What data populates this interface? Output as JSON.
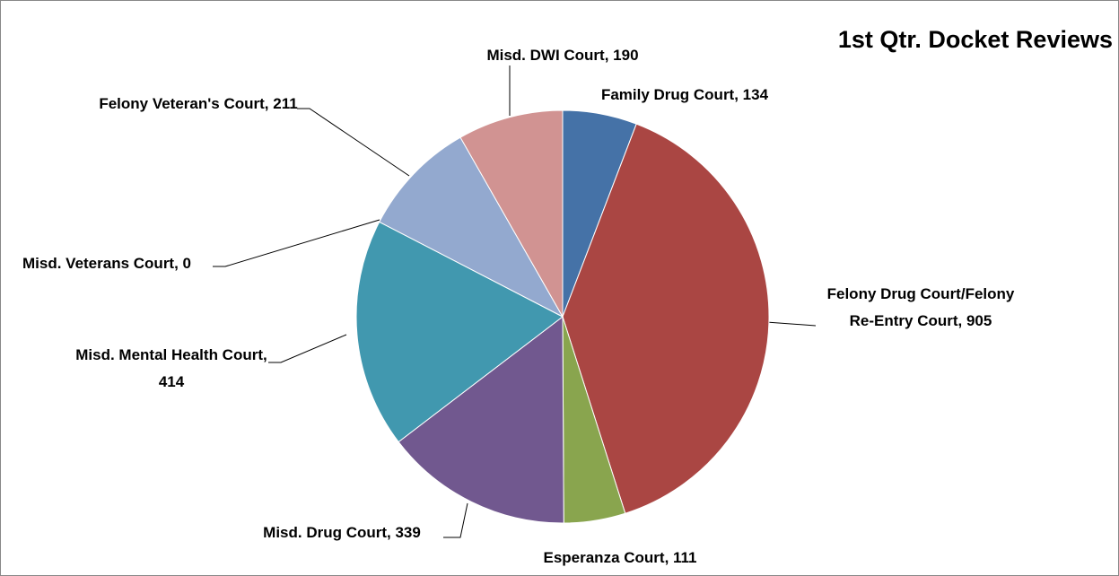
{
  "chart_data": {
    "type": "pie",
    "title": "1st Qtr. Docket Reviews",
    "values": [
      134,
      905,
      111,
      339,
      414,
      0,
      211,
      190
    ],
    "value_labels": [
      "Family Drug Court, 134",
      "Felony Drug Court/Felony Re-Entry Court, 905",
      "Esperanza Court, 111",
      "Misd. Drug Court, 339",
      "Misd. Mental Health Court, 414",
      "Misd. Veterans Court, 0",
      "Felony Veteran's Court, 211",
      "Misd. DWI Court, 190"
    ],
    "colors": [
      "#4572a7",
      "#aa4643",
      "#89a54e",
      "#71588f",
      "#4198af",
      "#db843d",
      "#93a9cf",
      "#d19392"
    ]
  }
}
